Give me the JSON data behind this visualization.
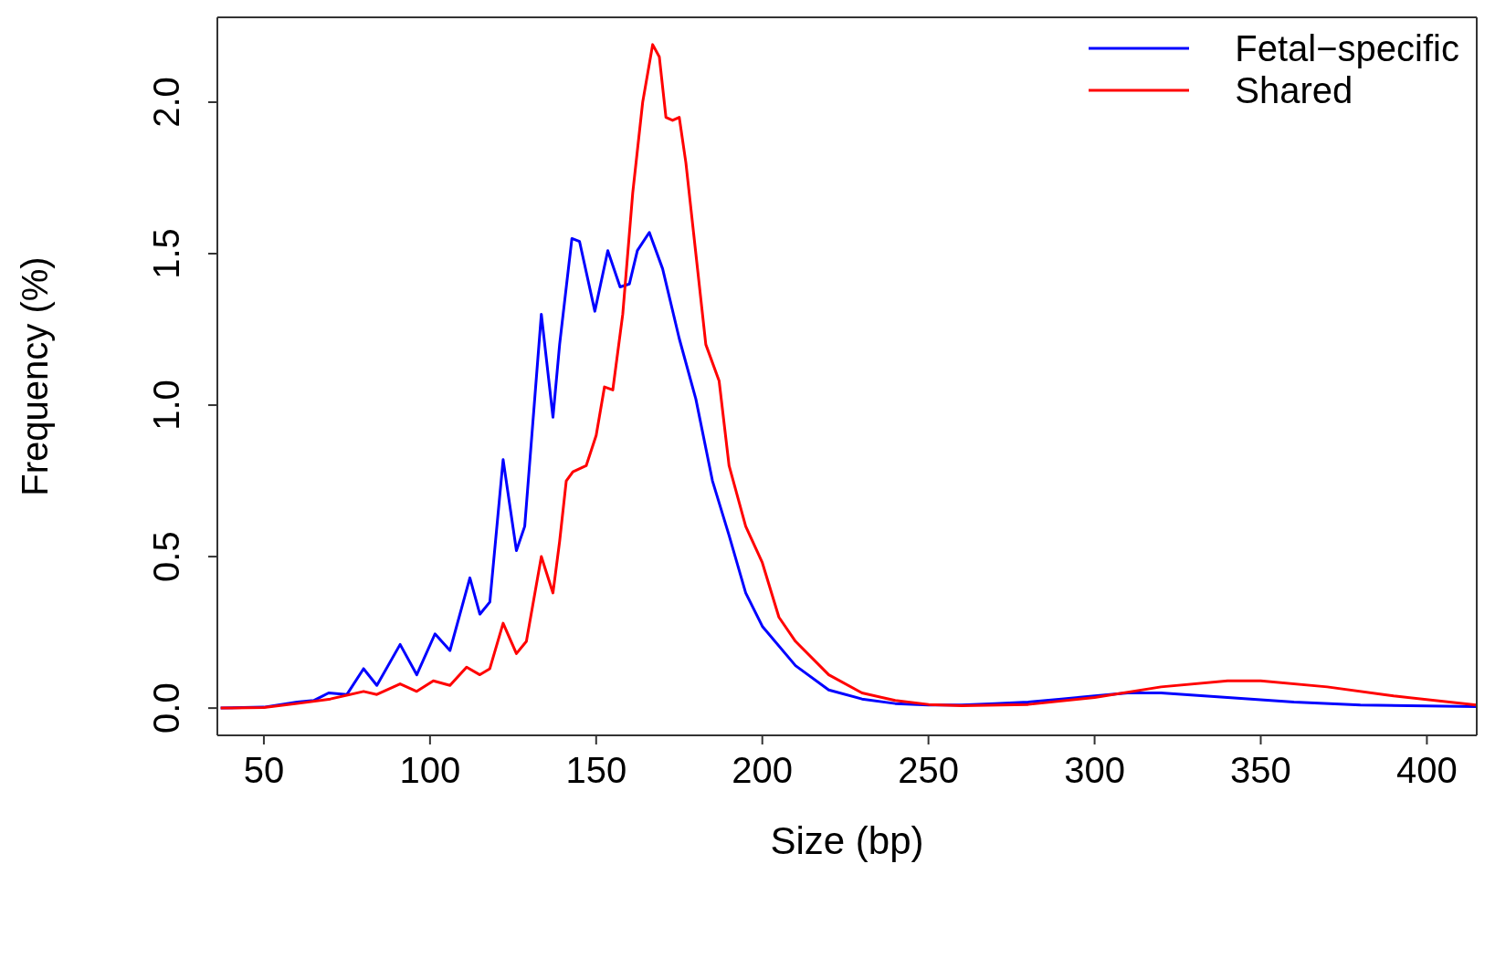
{
  "chart_data": {
    "type": "line",
    "xlabel": "Size (bp)",
    "ylabel": "Frequency (%)",
    "xlim": [
      36,
      415
    ],
    "xticks": [
      50,
      100,
      150,
      200,
      250,
      300,
      350,
      400
    ],
    "ylim": [
      -0.09,
      2.28
    ],
    "yticks": [
      {
        "value": 0,
        "label": "0.0"
      },
      {
        "value": 0.5,
        "label": "0.5"
      },
      {
        "value": 1,
        "label": "1.0"
      },
      {
        "value": 1.5,
        "label": "1.5"
      },
      {
        "value": 2,
        "label": "2.0"
      }
    ],
    "grid": false,
    "legend": "top right",
    "marker": "none",
    "line_style": "solid",
    "series": [
      {
        "name": "Fetal−specific",
        "color": "#0000ff",
        "x": [
          37,
          50,
          60,
          65,
          69.5,
          75,
          80,
          84,
          91,
          96,
          101.5,
          106,
          112,
          115,
          118,
          122,
          126,
          128.5,
          133.5,
          137,
          139,
          142.7,
          145,
          149.6,
          153.5,
          157.2,
          160,
          162.4,
          166,
          170,
          175,
          180,
          185,
          190,
          195,
          200,
          210,
          220,
          230,
          240,
          250,
          260,
          270,
          280,
          290,
          300,
          310,
          320,
          340,
          360,
          380,
          415
        ],
        "values": [
          0,
          0.003,
          0.02,
          0.025,
          0.05,
          0.045,
          0.13,
          0.075,
          0.21,
          0.11,
          0.245,
          0.19,
          0.43,
          0.31,
          0.35,
          0.82,
          0.52,
          0.6,
          1.3,
          0.96,
          1.2,
          1.55,
          1.54,
          1.31,
          1.51,
          1.39,
          1.4,
          1.51,
          1.57,
          1.45,
          1.22,
          1.02,
          0.75,
          0.57,
          0.38,
          0.27,
          0.14,
          0.06,
          0.03,
          0.015,
          0.01,
          0.01,
          0.015,
          0.02,
          0.03,
          0.04,
          0.05,
          0.05,
          0.035,
          0.02,
          0.01,
          0.005
        ]
      },
      {
        "name": "Shared",
        "color": "#ff0000",
        "x": [
          37,
          50,
          60,
          70,
          80,
          84,
          91,
          96,
          101,
          106,
          111,
          115,
          118,
          122,
          126,
          129,
          133.5,
          137,
          139,
          141,
          143,
          147,
          150,
          152.5,
          155,
          158,
          161,
          164,
          167,
          169,
          171,
          173,
          175,
          177,
          180,
          183,
          187,
          190,
          195,
          200,
          205,
          210,
          220,
          230,
          240,
          250,
          260,
          280,
          300,
          320,
          340,
          350,
          370,
          390,
          415
        ],
        "values": [
          0,
          0.002,
          0.015,
          0.03,
          0.055,
          0.045,
          0.08,
          0.055,
          0.09,
          0.075,
          0.135,
          0.11,
          0.13,
          0.28,
          0.18,
          0.22,
          0.5,
          0.38,
          0.55,
          0.75,
          0.78,
          0.8,
          0.9,
          1.06,
          1.05,
          1.3,
          1.7,
          2,
          2.19,
          2.15,
          1.95,
          1.94,
          1.95,
          1.8,
          1.5,
          1.2,
          1.08,
          0.8,
          0.6,
          0.48,
          0.3,
          0.22,
          0.11,
          0.05,
          0.025,
          0.012,
          0.008,
          0.012,
          0.035,
          0.07,
          0.09,
          0.09,
          0.07,
          0.04,
          0.01
        ]
      }
    ]
  }
}
